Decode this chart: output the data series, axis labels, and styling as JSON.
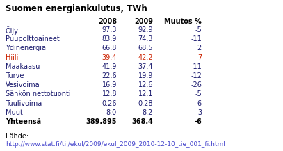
{
  "title": "Suomen energiankulutus, TWh",
  "col_headers": [
    "",
    "2008",
    "2009",
    "Muutos %"
  ],
  "rows": [
    [
      "Öljy",
      "97.3",
      "92.9",
      "-5"
    ],
    [
      "Puupolttoaineet",
      "83.9",
      "74.3",
      "-11"
    ],
    [
      "Ydinenergia",
      "66.8",
      "68.5",
      "2"
    ],
    [
      "Hiili",
      "39.4",
      "42.2",
      "7"
    ],
    [
      "Maakaasu",
      "41.9",
      "37.4",
      "-11"
    ],
    [
      "Turve",
      "22.6",
      "19.9",
      "-12"
    ],
    [
      "Vesivoima",
      "16.9",
      "12.6",
      "-26"
    ],
    [
      "Sähkön nettotuonti",
      "12.8",
      "12.1",
      "-5"
    ],
    [
      "Tuulivoima",
      "0.26",
      "0.28",
      "6"
    ],
    [
      "Muut",
      "8.0",
      "8.2",
      "3"
    ],
    [
      "Yhteensä",
      "389.895",
      "368.4",
      "-6"
    ]
  ],
  "bold_rows": [
    10
  ],
  "hiili_row": 3,
  "source_label": "Lähde:",
  "source_url": "http://www.stat.fi/til/ekul/2009/ekul_2009_2010-12-10_tie_001_fi.html",
  "bg_color": "#ffffff",
  "title_color": "#000000",
  "header_color": "#000000",
  "normal_row_color": "#1a1a6e",
  "hiili_color": "#cc2200",
  "total_color": "#000000",
  "url_color": "#4444cc",
  "source_color": "#000000",
  "font_size": 7.0,
  "title_font_size": 8.5
}
